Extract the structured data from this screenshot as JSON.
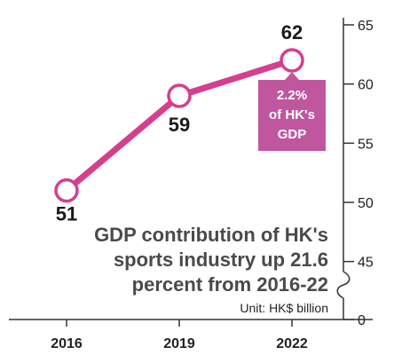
{
  "chart_data": {
    "type": "line",
    "title_lines": [
      "GDP contribution of HK's",
      "sports industry up 21.6",
      "percent from 2016-22"
    ],
    "unit": "Unit: HK$ billion",
    "categories": [
      "2016",
      "2019",
      "2022"
    ],
    "values": [
      51,
      59,
      62
    ],
    "data_labels": [
      "51",
      "59",
      "62"
    ],
    "y_ticks": [
      {
        "value": 65,
        "label": "65"
      },
      {
        "value": 60,
        "label": "60"
      },
      {
        "value": 55,
        "label": "55"
      },
      {
        "value": 50,
        "label": "50"
      },
      {
        "value": 45,
        "label": "45"
      },
      {
        "value": 0,
        "label": "0"
      }
    ],
    "ylim": [
      45,
      65
    ],
    "y_axis_broken": true,
    "axis_position": "right",
    "grid": false,
    "annotation": {
      "lines": [
        "2.2%",
        "of HK's",
        "GDP"
      ],
      "attached_to": "2022"
    },
    "colors": {
      "line": "#d63e8e",
      "marker_fill": "#ffffff",
      "callout_bg": "#c0579e",
      "axis": "#333333",
      "title": "#4a4a4a"
    }
  }
}
